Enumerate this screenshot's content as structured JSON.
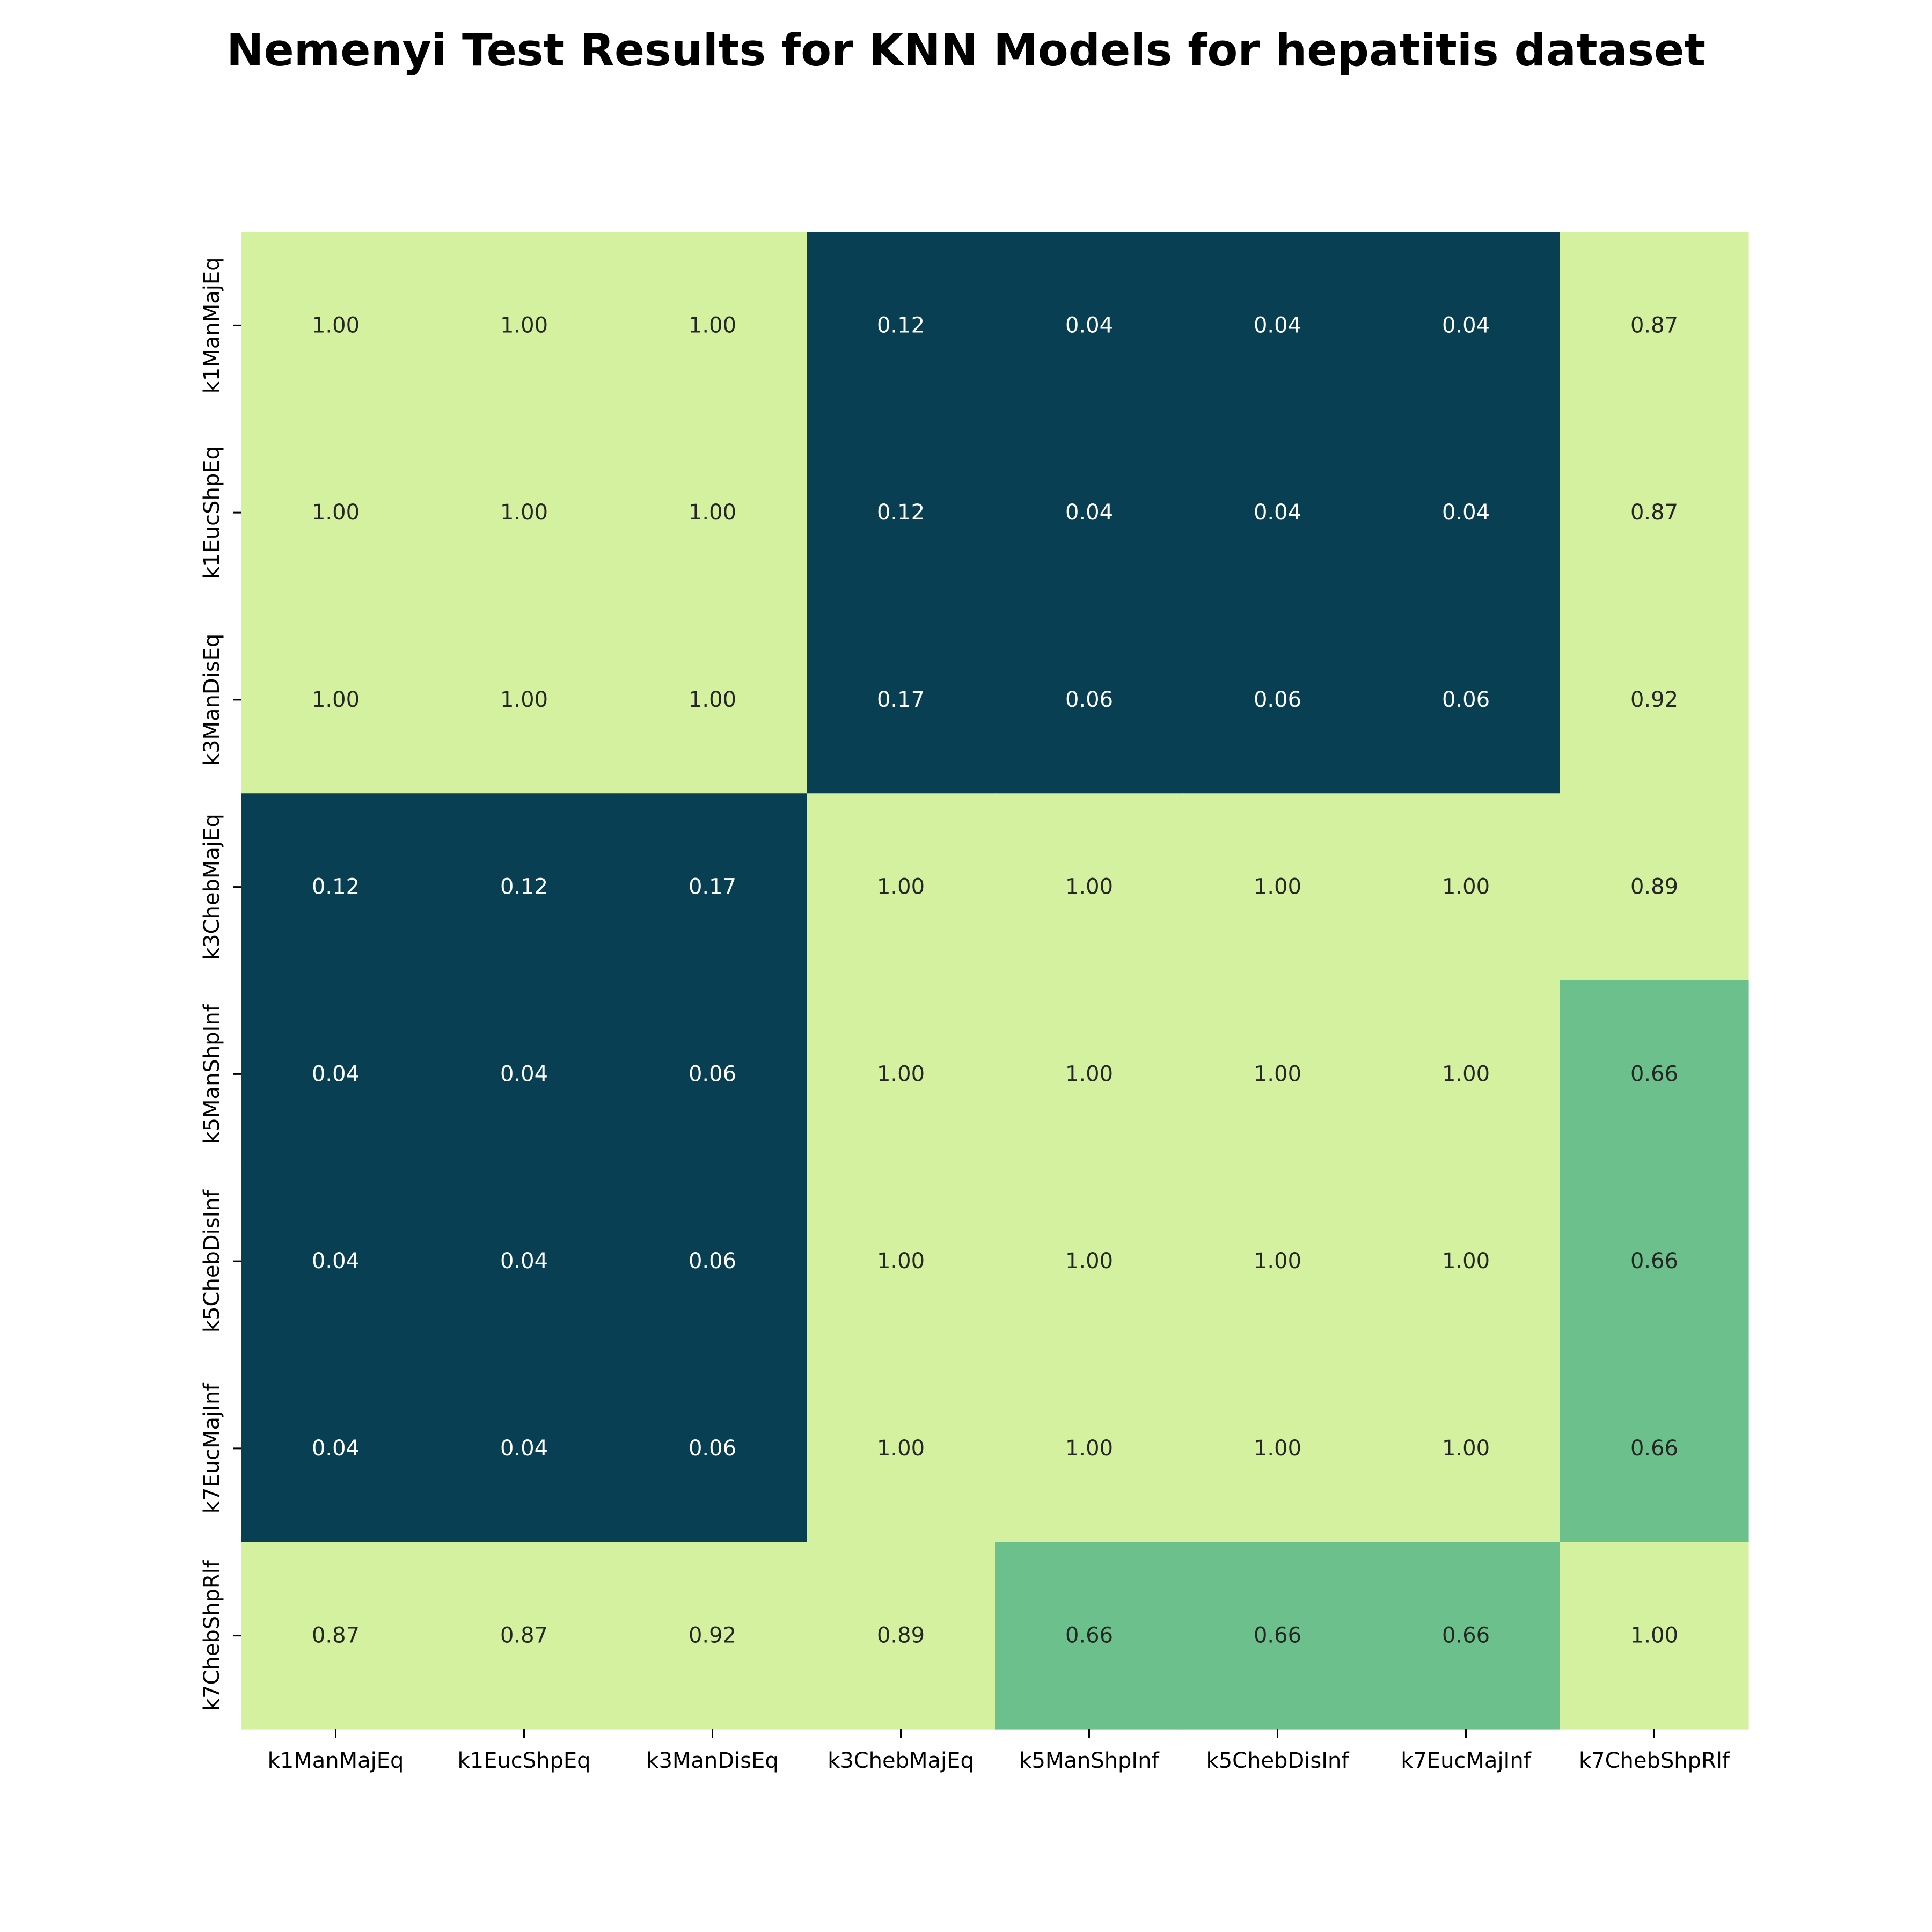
{
  "title": "Nemenyi Test Results for KNN Models for hepatitis dataset",
  "chart_data": {
    "type": "heatmap",
    "title": "Nemenyi Test Results for KNN Models for hepatitis dataset",
    "xlabel": "",
    "ylabel": "",
    "x_categories": [
      "k1ManMajEq",
      "k1EucShpEq",
      "k3ManDisEq",
      "k3ChebMajEq",
      "k5ManShpInf",
      "k5ChebDisInf",
      "k7EucMajInf",
      "k7ChebShpRlf"
    ],
    "y_categories": [
      "k1ManMajEq",
      "k1EucShpEq",
      "k3ManDisEq",
      "k3ChebMajEq",
      "k5ManShpInf",
      "k5ChebDisInf",
      "k7EucMajInf",
      "k7ChebShpRlf"
    ],
    "values": [
      [
        1.0,
        1.0,
        1.0,
        0.12,
        0.04,
        0.04,
        0.04,
        0.87
      ],
      [
        1.0,
        1.0,
        1.0,
        0.12,
        0.04,
        0.04,
        0.04,
        0.87
      ],
      [
        1.0,
        1.0,
        1.0,
        0.17,
        0.06,
        0.06,
        0.06,
        0.92
      ],
      [
        0.12,
        0.12,
        0.17,
        1.0,
        1.0,
        1.0,
        1.0,
        0.89
      ],
      [
        0.04,
        0.04,
        0.06,
        1.0,
        1.0,
        1.0,
        1.0,
        0.66
      ],
      [
        0.04,
        0.04,
        0.06,
        1.0,
        1.0,
        1.0,
        1.0,
        0.66
      ],
      [
        0.04,
        0.04,
        0.06,
        1.0,
        1.0,
        1.0,
        1.0,
        0.66
      ],
      [
        0.87,
        0.87,
        0.92,
        0.89,
        0.66,
        0.66,
        0.66,
        1.0
      ]
    ],
    "value_format": "0.00",
    "colorbar": false,
    "grid": false,
    "colors": {
      "high": "#d4f1a0",
      "mid": "#6cc08b",
      "low": "#083f52",
      "text_on_light": "#262626",
      "text_on_dark": "#ffffff"
    }
  }
}
